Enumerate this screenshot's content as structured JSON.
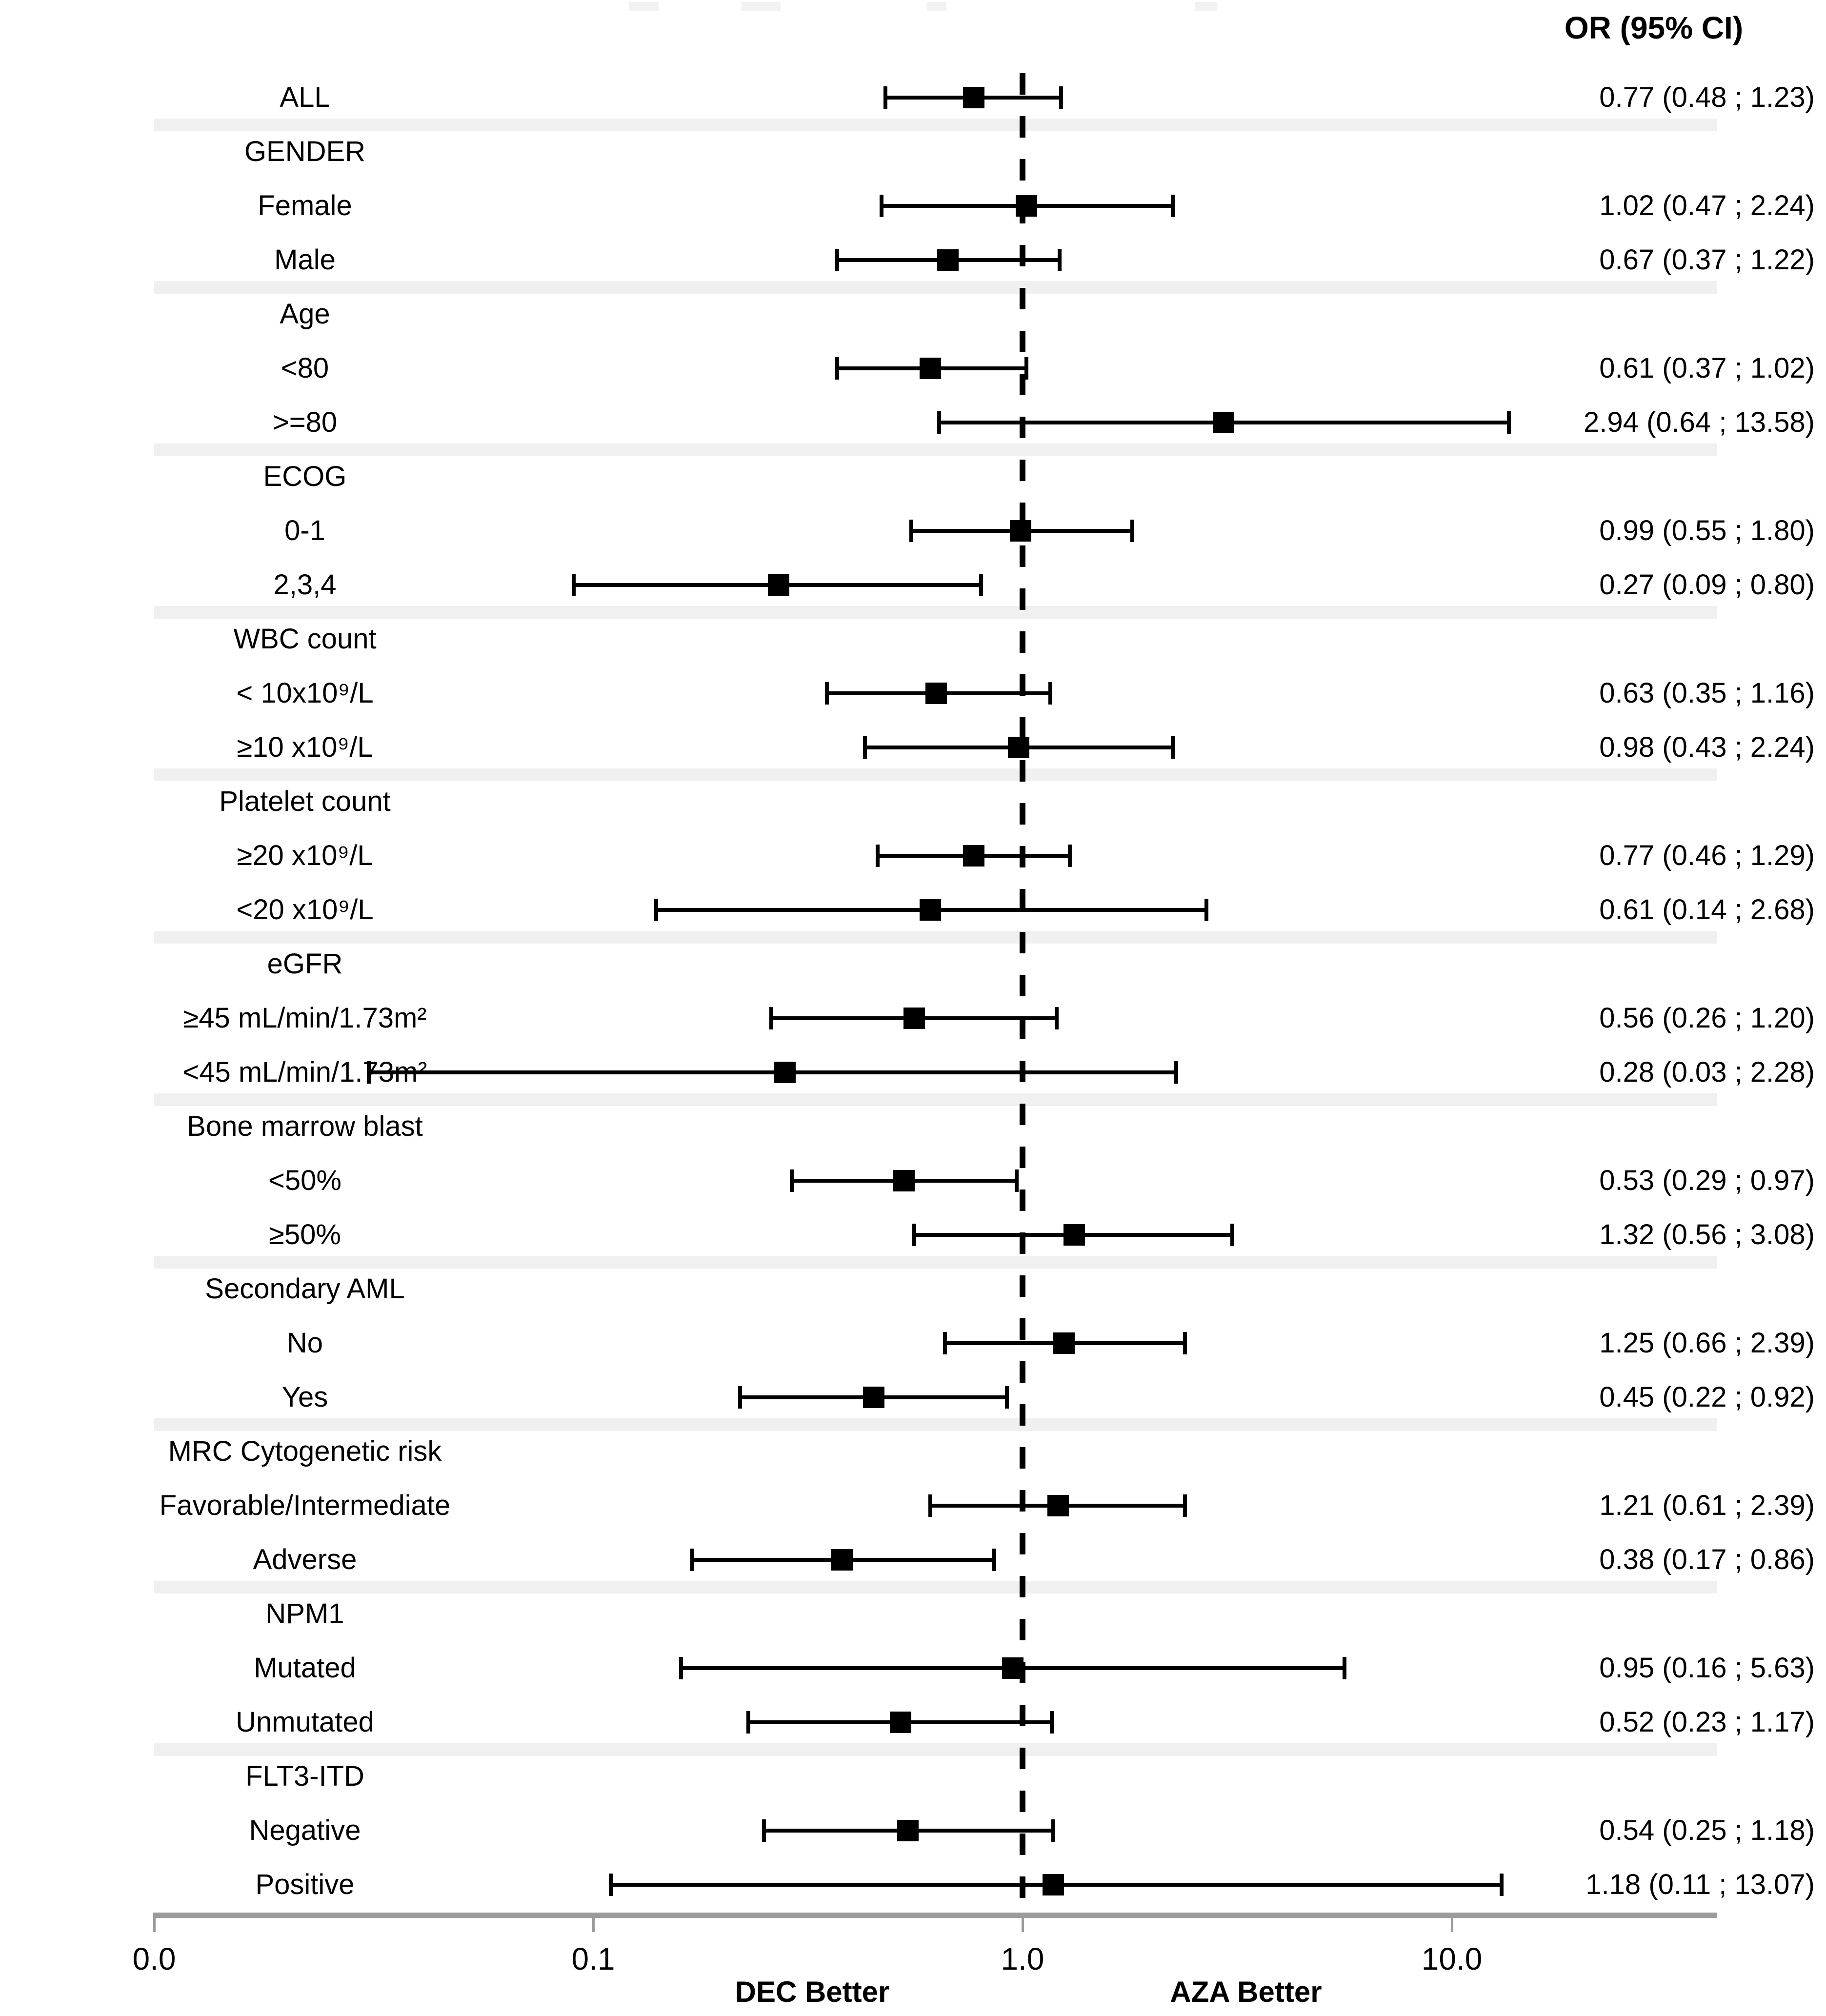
{
  "chart_data": {
    "type": "forest",
    "value_header": "OR (95% CI)",
    "x_axis": {
      "scale": "log",
      "ticks": [
        {
          "label": "0.0",
          "value": 0.0095
        },
        {
          "label": "0.1",
          "value": 0.1
        },
        {
          "label": "1.0",
          "value": 1.0
        },
        {
          "label": "10.0",
          "value": 10.0
        }
      ],
      "reference_line": 1.0,
      "left_note": "DEC Better",
      "right_note": "AZA Better",
      "range": [
        0.0095,
        41
      ]
    },
    "rows": [
      {
        "kind": "overall",
        "label": "ALL",
        "or": 0.77,
        "lo": 0.48,
        "hi": 1.23,
        "text": "0.77 (0.48 ; 1.23)"
      },
      {
        "kind": "group",
        "label": "GENDER",
        "stripe_before": true
      },
      {
        "kind": "item",
        "label": "Female",
        "or": 1.02,
        "lo": 0.47,
        "hi": 2.24,
        "text": "1.02 (0.47 ; 2.24)"
      },
      {
        "kind": "item",
        "label": "Male",
        "or": 0.67,
        "lo": 0.37,
        "hi": 1.22,
        "text": "0.67 (0.37 ; 1.22)"
      },
      {
        "kind": "group",
        "label": "Age",
        "stripe_before": true
      },
      {
        "kind": "item",
        "label": "<80",
        "or": 0.61,
        "lo": 0.37,
        "hi": 1.02,
        "text": "0.61 (0.37 ; 1.02)"
      },
      {
        "kind": "item",
        "label": ">=80",
        "or": 2.94,
        "lo": 0.64,
        "hi": 13.58,
        "text": "2.94 (0.64 ; 13.58)"
      },
      {
        "kind": "group",
        "label": "ECOG",
        "stripe_before": true
      },
      {
        "kind": "item",
        "label": "0-1",
        "or": 0.99,
        "lo": 0.55,
        "hi": 1.8,
        "text": "0.99 (0.55 ; 1.80)"
      },
      {
        "kind": "item",
        "label": "2,3,4",
        "or": 0.27,
        "lo": 0.09,
        "hi": 0.8,
        "text": "0.27 (0.09 ; 0.80)"
      },
      {
        "kind": "group",
        "label": "WBC count",
        "stripe_before": true
      },
      {
        "kind": "item",
        "label": "< 10x10⁹/L",
        "or": 0.63,
        "lo": 0.35,
        "hi": 1.16,
        "text": "0.63 (0.35 ; 1.16)"
      },
      {
        "kind": "item",
        "label": "≥10 x10⁹/L",
        "or": 0.98,
        "lo": 0.43,
        "hi": 2.24,
        "text": "0.98 (0.43 ; 2.24)"
      },
      {
        "kind": "group",
        "label": "Platelet count",
        "stripe_before": true
      },
      {
        "kind": "item",
        "label": "≥20 x10⁹/L",
        "or": 0.77,
        "lo": 0.46,
        "hi": 1.29,
        "text": "0.77 (0.46 ; 1.29)"
      },
      {
        "kind": "item",
        "label": "<20 x10⁹/L",
        "or": 0.61,
        "lo": 0.14,
        "hi": 2.68,
        "text": "0.61 (0.14 ; 2.68)"
      },
      {
        "kind": "group",
        "label": "eGFR",
        "stripe_before": true
      },
      {
        "kind": "item",
        "label": "≥45 mL/min/1.73m²",
        "or": 0.56,
        "lo": 0.26,
        "hi": 1.2,
        "text": "0.56 (0.26 ; 1.20)"
      },
      {
        "kind": "item",
        "label": "<45 mL/min/1.73m²",
        "or": 0.28,
        "lo": 0.03,
        "hi": 2.28,
        "text": "0.28 (0.03 ; 2.28)"
      },
      {
        "kind": "group",
        "label": "Bone marrow blast",
        "stripe_before": true
      },
      {
        "kind": "item",
        "label": "<50%",
        "or": 0.53,
        "lo": 0.29,
        "hi": 0.97,
        "text": "0.53 (0.29 ; 0.97)"
      },
      {
        "kind": "item",
        "label": "≥50%",
        "or": 1.32,
        "lo": 0.56,
        "hi": 3.08,
        "text": "1.32 (0.56 ; 3.08)"
      },
      {
        "kind": "group",
        "label": "Secondary AML",
        "stripe_before": true
      },
      {
        "kind": "item",
        "label": "No",
        "or": 1.25,
        "lo": 0.66,
        "hi": 2.39,
        "text": "1.25 (0.66 ; 2.39)"
      },
      {
        "kind": "item",
        "label": "Yes",
        "or": 0.45,
        "lo": 0.22,
        "hi": 0.92,
        "text": "0.45 (0.22 ; 0.92)"
      },
      {
        "kind": "group",
        "label": "MRC Cytogenetic risk",
        "stripe_before": true
      },
      {
        "kind": "item",
        "label": "Favorable/Intermediate",
        "or": 1.21,
        "lo": 0.61,
        "hi": 2.39,
        "text": "1.21 (0.61 ; 2.39)"
      },
      {
        "kind": "item",
        "label": "Adverse",
        "or": 0.38,
        "lo": 0.17,
        "hi": 0.86,
        "text": "0.38 (0.17 ; 0.86)"
      },
      {
        "kind": "group",
        "label": "NPM1",
        "stripe_before": true
      },
      {
        "kind": "item",
        "label": "Mutated",
        "or": 0.95,
        "lo": 0.16,
        "hi": 5.63,
        "text": "0.95 (0.16 ; 5.63)"
      },
      {
        "kind": "item",
        "label": "Unmutated",
        "or": 0.52,
        "lo": 0.23,
        "hi": 1.17,
        "text": "0.52 (0.23 ; 1.17)"
      },
      {
        "kind": "group",
        "label": "FLT3-ITD",
        "stripe_before": true
      },
      {
        "kind": "item",
        "label": "Negative",
        "or": 0.54,
        "lo": 0.25,
        "hi": 1.18,
        "text": "0.54 (0.25 ; 1.18)"
      },
      {
        "kind": "item",
        "label": "Positive",
        "or": 1.18,
        "lo": 0.11,
        "hi": 13.07,
        "text": "1.18 (0.11 ; 13.07)"
      }
    ],
    "style": {
      "marker_color": "#000000",
      "whisker_color": "#000000",
      "stripe_color": "#f0f0f0",
      "axis_color": "#9b9b9b",
      "reference_line_color": "#000000",
      "legend_position": "none",
      "grid": false
    }
  }
}
